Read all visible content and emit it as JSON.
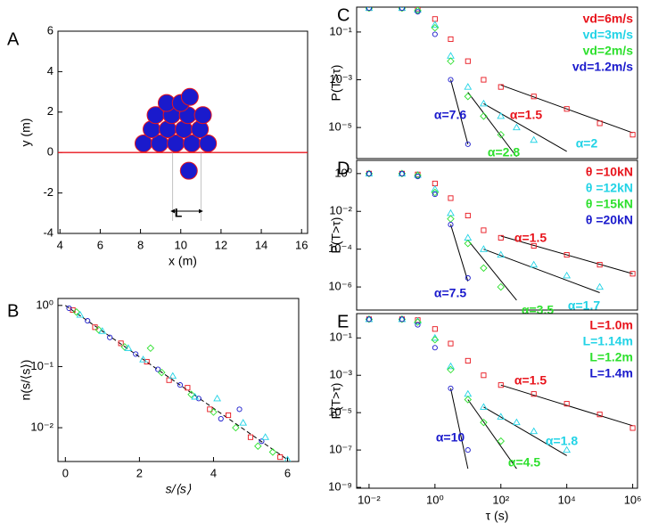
{
  "chart_data": [
    {
      "type": "disks",
      "panel_label": "A",
      "xlabel": "x (m)",
      "ylabel": "y (m)",
      "xlim": [
        3.9,
        16.3
      ],
      "ylim": [
        -4,
        6
      ],
      "xticks": [
        4,
        6,
        8,
        10,
        12,
        14,
        16
      ],
      "yticks": [
        -4,
        -2,
        0,
        2,
        4,
        6
      ],
      "color": "#1a1acc",
      "edge_color": "#e8141c",
      "hline": 0,
      "hline_color": "#e8141c",
      "x": [
        8.15,
        8.95,
        9.75,
        10.55,
        11.35,
        8.55,
        9.35,
        10.15,
        10.95,
        8.75,
        9.55,
        10.35,
        11.1,
        9.3,
        10.0,
        10.45,
        10.4
      ],
      "values": [
        0.45,
        0.45,
        0.45,
        0.45,
        0.45,
        1.15,
        1.15,
        1.15,
        1.15,
        1.85,
        1.85,
        1.85,
        1.85,
        2.45,
        2.45,
        2.75,
        -0.9
      ],
      "annotations": [
        {
          "text": "L",
          "color": "#000000"
        }
      ]
    },
    {
      "type": "scatter",
      "panel_label": "B",
      "xlabel": "s/⟨s⟩",
      "ylabel": "n(s/⟨s⟩)",
      "xscale": "linear",
      "yscale": "log",
      "xlim": [
        -0.2,
        6.3
      ],
      "ylim": [
        0.0028,
        1.3
      ],
      "xticks": [
        0,
        2,
        4,
        6
      ],
      "yticks": [
        {
          "value": 1,
          "label": "10⁰"
        },
        {
          "value": 0.1,
          "label": "10⁻¹"
        },
        {
          "value": 0.01,
          "label": "10⁻²"
        }
      ],
      "series": [
        {
          "color": "#e8141c",
          "marker": "square",
          "x": [
            0.2,
            0.8,
            1.5,
            2.2,
            2.8,
            3.3,
            3.9,
            4.4,
            5.0,
            5.8
          ],
          "values": [
            0.84,
            0.44,
            0.24,
            0.12,
            0.06,
            0.045,
            0.02,
            0.016,
            0.007,
            0.0033
          ]
        },
        {
          "color": "#1a1acc",
          "marker": "circle",
          "x": [
            0.1,
            0.6,
            1.2,
            1.9,
            2.5,
            3.1,
            3.6,
            4.2,
            4.7,
            5.3
          ],
          "values": [
            0.9,
            0.56,
            0.3,
            0.16,
            0.09,
            0.05,
            0.03,
            0.014,
            0.02,
            0.006
          ]
        },
        {
          "color": "#2ee02e",
          "marker": "diamond",
          "x": [
            0.3,
            0.9,
            1.6,
            2.3,
            2.6,
            3.4,
            4.0,
            4.6,
            5.2,
            5.6
          ],
          "values": [
            0.78,
            0.4,
            0.21,
            0.2,
            0.08,
            0.035,
            0.018,
            0.01,
            0.005,
            0.004
          ]
        },
        {
          "color": "#22d3e6",
          "marker": "triangle",
          "x": [
            0.4,
            1.0,
            1.7,
            2.1,
            2.9,
            3.5,
            4.1,
            4.8,
            5.4,
            6.0
          ],
          "values": [
            0.7,
            0.38,
            0.2,
            0.13,
            0.07,
            0.032,
            0.03,
            0.012,
            0.007,
            0.003
          ]
        }
      ],
      "fit_lines": [
        {
          "x": [
            0,
            6
          ],
          "values": [
            1,
            0.003
          ],
          "dashed": true
        }
      ]
    },
    {
      "type": "scatter",
      "panel_label": "C",
      "ylabel": "P(T>τ)",
      "xscale": "log",
      "yscale": "log",
      "xlim": [
        0.0042,
        1400000
      ],
      "ylim": [
        5e-07,
        1.1
      ],
      "yticks": [
        {
          "value": 0.1,
          "label": "10⁻¹"
        },
        {
          "value": 0.001,
          "label": "10⁻³"
        },
        {
          "value": 1e-05,
          "label": "10⁻⁵"
        }
      ],
      "series": [
        {
          "name": "vd=6m/s",
          "color": "#e8141c",
          "marker": "square",
          "x": [
            0.01,
            0.1,
            0.3,
            1,
            3,
            10,
            30,
            100,
            1000,
            10000,
            100000,
            1000000
          ],
          "values": [
            1,
            1,
            0.9,
            0.35,
            0.05,
            0.006,
            0.001,
            0.0005,
            0.0002,
            6e-05,
            1.5e-05,
            5e-06
          ]
        },
        {
          "name": "vd=3m/s",
          "color": "#22d3e6",
          "marker": "triangle",
          "x": [
            0.01,
            0.1,
            0.3,
            1,
            3,
            10,
            30,
            100,
            300,
            1000
          ],
          "values": [
            1,
            1,
            0.85,
            0.2,
            0.01,
            0.0005,
            0.0001,
            3e-05,
            1e-05,
            3e-06
          ]
        },
        {
          "name": "vd=2m/s",
          "color": "#2ee02e",
          "marker": "diamond",
          "x": [
            0.01,
            0.1,
            0.3,
            1,
            3,
            10,
            30,
            100
          ],
          "values": [
            1,
            1,
            0.8,
            0.15,
            0.006,
            0.0002,
            3e-05,
            5e-06
          ]
        },
        {
          "name": "vd=1.2m/s",
          "color": "#1a1acc",
          "marker": "circle",
          "x": [
            0.01,
            0.1,
            0.3,
            1,
            3,
            10
          ],
          "values": [
            1,
            1,
            0.7,
            0.08,
            0.001,
            2e-06
          ]
        }
      ],
      "fit_lines": [
        {
          "x": [
            100,
            1000000
          ],
          "values": [
            0.0006,
            6e-06
          ]
        },
        {
          "x": [
            3,
            10
          ],
          "values": [
            0.001,
            2e-06
          ]
        },
        {
          "x": [
            10,
            300
          ],
          "values": [
            0.0003,
            6e-07
          ]
        },
        {
          "x": [
            30,
            10000
          ],
          "values": [
            0.0001,
            1e-06
          ]
        }
      ],
      "annotations": [
        {
          "text": "α=1.5",
          "color": "#e8141c"
        },
        {
          "text": "α=7.6",
          "color": "#1a1acc"
        },
        {
          "text": "α=2.8",
          "color": "#2ee02e"
        },
        {
          "text": "α=2",
          "color": "#22d3e6"
        }
      ]
    },
    {
      "type": "scatter",
      "panel_label": "D",
      "ylabel": "P(T>τ)",
      "xscale": "log",
      "yscale": "log",
      "xlim": [
        0.0042,
        1400000
      ],
      "ylim": [
        6e-08,
        5
      ],
      "yticks": [
        {
          "value": 1,
          "label": "10⁰"
        },
        {
          "value": 0.01,
          "label": "10⁻²"
        },
        {
          "value": 0.0001,
          "label": "10⁻⁴"
        },
        {
          "value": 1e-06,
          "label": "10⁻⁶"
        }
      ],
      "series": [
        {
          "name": "θ =10kN",
          "color": "#e8141c",
          "marker": "square",
          "x": [
            0.01,
            0.1,
            0.3,
            1,
            3,
            10,
            30,
            100,
            1000,
            10000,
            100000,
            1000000
          ],
          "values": [
            1,
            1,
            0.9,
            0.3,
            0.05,
            0.006,
            0.001,
            0.0004,
            0.00015,
            5e-05,
            1.5e-05,
            5e-06
          ]
        },
        {
          "name": "θ =12kN",
          "color": "#22d3e6",
          "marker": "triangle",
          "x": [
            0.01,
            0.1,
            0.3,
            1,
            3,
            10,
            30,
            100,
            1000,
            10000,
            100000
          ],
          "values": [
            1,
            1,
            0.85,
            0.15,
            0.008,
            0.0004,
            0.0001,
            5e-05,
            1.5e-05,
            4e-06,
            1e-06
          ]
        },
        {
          "name": "θ =15kN",
          "color": "#2ee02e",
          "marker": "diamond",
          "x": [
            0.01,
            0.1,
            0.3,
            1,
            3,
            10,
            30,
            100
          ],
          "values": [
            1,
            1,
            0.8,
            0.1,
            0.004,
            0.0002,
            1e-05,
            1e-06
          ]
        },
        {
          "name": "θ =20kN",
          "color": "#1a1acc",
          "marker": "circle",
          "x": [
            0.01,
            0.1,
            0.3,
            1,
            3,
            10
          ],
          "values": [
            1,
            1,
            0.7,
            0.08,
            0.002,
            3e-06
          ]
        }
      ],
      "fit_lines": [
        {
          "x": [
            100,
            1000000
          ],
          "values": [
            0.0005,
            5e-06
          ]
        },
        {
          "x": [
            3,
            10
          ],
          "values": [
            0.002,
            2e-06
          ]
        },
        {
          "x": [
            10,
            300
          ],
          "values": [
            0.0003,
            2e-07
          ]
        },
        {
          "x": [
            30,
            100000
          ],
          "values": [
            0.0001,
            5e-07
          ]
        }
      ],
      "annotations": [
        {
          "text": "α=1.5",
          "color": "#e8141c"
        },
        {
          "text": "α=7.5",
          "color": "#1a1acc"
        },
        {
          "text": "α=3.5",
          "color": "#2ee02e"
        },
        {
          "text": "α=1.7",
          "color": "#22d3e6"
        }
      ]
    },
    {
      "type": "scatter",
      "panel_label": "E",
      "ylabel": "P(T>τ)",
      "xlabel": "τ (s)",
      "xscale": "log",
      "yscale": "log",
      "xlim": [
        0.0042,
        1400000
      ],
      "ylim": [
        9e-10,
        2
      ],
      "xticks": [
        {
          "value": 0.01,
          "label": "10⁻²"
        },
        {
          "value": 1,
          "label": "10⁰"
        },
        {
          "value": 100,
          "label": "10²"
        },
        {
          "value": 10000,
          "label": "10⁴"
        },
        {
          "value": 1000000,
          "label": "10⁶"
        }
      ],
      "yticks": [
        {
          "value": 0.1,
          "label": "10⁻¹"
        },
        {
          "value": 0.001,
          "label": "10⁻³"
        },
        {
          "value": 1e-05,
          "label": "10⁻⁵"
        },
        {
          "value": 1e-07,
          "label": "10⁻⁷"
        },
        {
          "value": 1e-09,
          "label": "10⁻⁹"
        }
      ],
      "series": [
        {
          "name": "L=1.0m",
          "color": "#e8141c",
          "marker": "square",
          "x": [
            0.01,
            0.1,
            0.3,
            1,
            3,
            10,
            30,
            100,
            1000,
            10000,
            100000,
            1000000
          ],
          "values": [
            1,
            1,
            0.9,
            0.3,
            0.05,
            0.006,
            0.001,
            0.0003,
            0.0001,
            3e-05,
            8e-06,
            1.5e-06
          ]
        },
        {
          "name": "L=1.14m",
          "color": "#22d3e6",
          "marker": "triangle",
          "x": [
            0.01,
            0.1,
            0.3,
            1,
            3,
            10,
            30,
            100,
            300,
            1000,
            10000
          ],
          "values": [
            1,
            1,
            0.8,
            0.1,
            0.003,
            0.0001,
            2e-05,
            6e-06,
            3e-06,
            1e-06,
            1e-07
          ]
        },
        {
          "name": "L=1.2m",
          "color": "#2ee02e",
          "marker": "diamond",
          "x": [
            0.01,
            0.1,
            0.3,
            1,
            3,
            10,
            30,
            100
          ],
          "values": [
            1,
            1,
            0.7,
            0.08,
            0.002,
            5e-05,
            3e-06,
            3e-07
          ]
        },
        {
          "name": "L=1.4m",
          "color": "#1a1acc",
          "marker": "circle",
          "x": [
            0.01,
            0.1,
            0.3,
            1,
            3,
            10
          ],
          "values": [
            1,
            1,
            0.5,
            0.03,
            0.0002,
            1e-07
          ]
        }
      ],
      "fit_lines": [
        {
          "x": [
            100,
            1000000
          ],
          "values": [
            0.0003,
            2e-06
          ]
        },
        {
          "x": [
            3,
            10
          ],
          "values": [
            0.0002,
            1e-08
          ]
        },
        {
          "x": [
            10,
            300
          ],
          "values": [
            5e-05,
            1e-08
          ]
        },
        {
          "x": [
            30,
            10000
          ],
          "values": [
            2e-05,
            5e-08
          ]
        }
      ],
      "annotations": [
        {
          "text": "α=1.5",
          "color": "#e8141c"
        },
        {
          "text": "α=10",
          "color": "#1a1acc"
        },
        {
          "text": "α=1.8",
          "color": "#22d3e6"
        },
        {
          "text": "α=4.5",
          "color": "#2ee02e"
        }
      ]
    }
  ]
}
